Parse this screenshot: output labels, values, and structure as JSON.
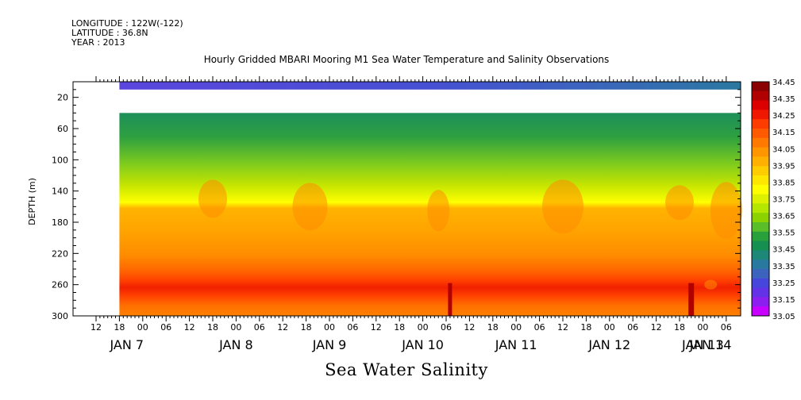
{
  "header": {
    "longitude": "LONGITUDE : 122W(-122)",
    "latitude": "LATITUDE : 36.8N",
    "year": "YEAR : 2013"
  },
  "title": "Hourly Gridded MBARI Mooring M1 Sea Water Temperature and Salinity Observations",
  "bottom_title": "Sea Water Salinity",
  "chart_data": {
    "type": "heatmap",
    "title": "Hourly Gridded MBARI Mooring M1 Sea Water Temperature and Salinity Observations",
    "xlabel": "",
    "ylabel": "DEPTH (m)",
    "variable": "Sea Water Salinity",
    "y_reversed": true,
    "ylim": [
      0,
      300
    ],
    "y_ticks": [
      20,
      60,
      100,
      140,
      180,
      220,
      260,
      300
    ],
    "x_hour_ticks": [
      "12",
      "18",
      "00",
      "06",
      "12",
      "18",
      "00",
      "06",
      "12",
      "18",
      "00",
      "06",
      "12",
      "18",
      "00",
      "06",
      "12",
      "18",
      "00",
      "06",
      "12",
      "18",
      "00",
      "06",
      "12",
      "18",
      "00",
      "06"
    ],
    "x_day_labels": [
      {
        "label": "JAN  7",
        "day": 7
      },
      {
        "label": "JAN  8",
        "day": 8
      },
      {
        "label": "JAN  9",
        "day": 9
      },
      {
        "label": "JAN 10",
        "day": 10
      },
      {
        "label": "JAN 11",
        "day": 11
      },
      {
        "label": "JAN 12",
        "day": 12
      },
      {
        "label": "JAN 13",
        "day": 13
      },
      {
        "label": "JAN 14",
        "day": 14
      }
    ],
    "time_range": [
      "2013-01-06T12:00",
      "2013-01-14T09:00"
    ],
    "data_start": "2013-01-06T18:00",
    "colorbar": {
      "levels": [
        "34.45",
        "34.35",
        "34.25",
        "34.15",
        "34.05",
        "33.95",
        "33.85",
        "33.75",
        "33.65",
        "33.55",
        "33.45",
        "33.35",
        "33.25",
        "33.15",
        "33.05"
      ],
      "colors": [
        "#8b0000",
        "#b00000",
        "#dd0000",
        "#f01800",
        "#ff3c00",
        "#ff5a00",
        "#ff7800",
        "#ff9600",
        "#ffb000",
        "#ffcc00",
        "#ffe600",
        "#ffff00",
        "#dcf000",
        "#b4e600",
        "#8cd200",
        "#5abe28",
        "#28a03c",
        "#169050",
        "#1e8878",
        "#2878a0",
        "#3c64be",
        "#4646dc",
        "#6432e6",
        "#8c1ef0",
        "#c800ff"
      ]
    },
    "depth_profile": [
      {
        "depth": 10,
        "salinity": 33.28
      },
      {
        "depth": 40,
        "salinity": 33.45
      },
      {
        "depth": 60,
        "salinity": 33.55
      },
      {
        "depth": 80,
        "salinity": 33.68
      },
      {
        "depth": 100,
        "salinity": 33.78
      },
      {
        "depth": 120,
        "salinity": 33.88
      },
      {
        "depth": 140,
        "salinity": 33.97
      },
      {
        "depth": 160,
        "salinity": 34.05
      },
      {
        "depth": 180,
        "salinity": 34.06
      },
      {
        "depth": 200,
        "salinity": 34.1
      },
      {
        "depth": 220,
        "salinity": 34.16
      },
      {
        "depth": 240,
        "salinity": 34.26
      },
      {
        "depth": 250,
        "salinity": 34.3
      },
      {
        "depth": 260,
        "salinity": 34.28
      },
      {
        "depth": 280,
        "salinity": 34.2
      },
      {
        "depth": 300,
        "salinity": 34.16
      }
    ]
  }
}
